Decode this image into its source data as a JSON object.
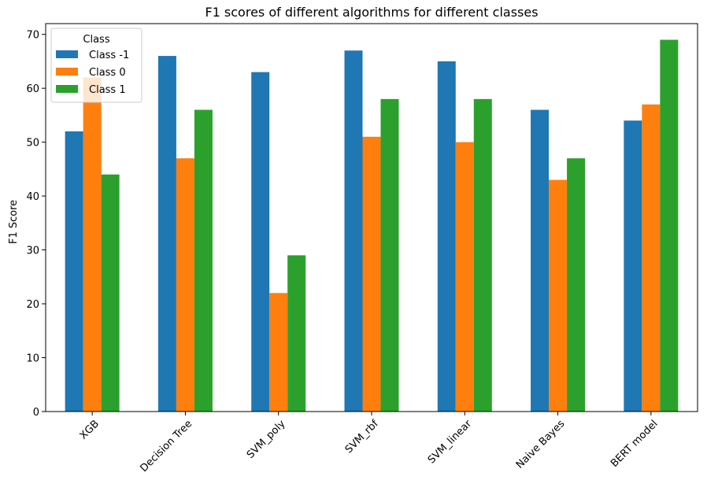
{
  "chart_data": {
    "type": "bar",
    "title": "F1 scores of different algorithms for different classes",
    "xlabel": "",
    "ylabel": "F1 Score",
    "ylim": [
      0,
      72
    ],
    "yticks": [
      0,
      10,
      20,
      30,
      40,
      50,
      60,
      70
    ],
    "grid": false,
    "categories": [
      "XGB",
      "Decision Tree",
      "SVM_poly",
      "SVM_rbf",
      "SVM_linear",
      "Naive Bayes",
      "BERT model"
    ],
    "series": [
      {
        "name": "Class -1",
        "color": "#1f77b4",
        "values": [
          52,
          66,
          63,
          67,
          65,
          56,
          54
        ]
      },
      {
        "name": "Class 0",
        "color": "#ff7f0e",
        "values": [
          62,
          47,
          22,
          51,
          50,
          43,
          57
        ]
      },
      {
        "name": "Class 1",
        "color": "#2ca02c",
        "values": [
          44,
          56,
          29,
          58,
          58,
          47,
          69
        ]
      }
    ],
    "legend": {
      "title": "Class",
      "position": "top-left"
    }
  }
}
